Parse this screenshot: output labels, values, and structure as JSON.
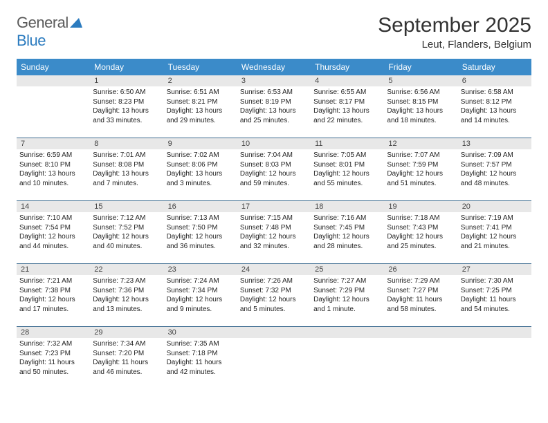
{
  "logo": {
    "part1": "General",
    "part2": "Blue"
  },
  "title": "September 2025",
  "location": "Leut, Flanders, Belgium",
  "colors": {
    "header_bg": "#3b8bc9",
    "header_text": "#ffffff",
    "daynum_bg": "#e8e8e8",
    "border": "#3b6a8f",
    "logo_gray": "#5a5a5a",
    "logo_blue": "#2b7bbf"
  },
  "typography": {
    "title_fontsize": 30,
    "location_fontsize": 15,
    "dayheader_fontsize": 12,
    "daynum_fontsize": 11,
    "cell_fontsize": 10
  },
  "day_names": [
    "Sunday",
    "Monday",
    "Tuesday",
    "Wednesday",
    "Thursday",
    "Friday",
    "Saturday"
  ],
  "weeks": [
    {
      "nums": [
        "",
        "1",
        "2",
        "3",
        "4",
        "5",
        "6"
      ],
      "cells": [
        [],
        [
          "Sunrise: 6:50 AM",
          "Sunset: 8:23 PM",
          "Daylight: 13 hours",
          "and 33 minutes."
        ],
        [
          "Sunrise: 6:51 AM",
          "Sunset: 8:21 PM",
          "Daylight: 13 hours",
          "and 29 minutes."
        ],
        [
          "Sunrise: 6:53 AM",
          "Sunset: 8:19 PM",
          "Daylight: 13 hours",
          "and 25 minutes."
        ],
        [
          "Sunrise: 6:55 AM",
          "Sunset: 8:17 PM",
          "Daylight: 13 hours",
          "and 22 minutes."
        ],
        [
          "Sunrise: 6:56 AM",
          "Sunset: 8:15 PM",
          "Daylight: 13 hours",
          "and 18 minutes."
        ],
        [
          "Sunrise: 6:58 AM",
          "Sunset: 8:12 PM",
          "Daylight: 13 hours",
          "and 14 minutes."
        ]
      ]
    },
    {
      "nums": [
        "7",
        "8",
        "9",
        "10",
        "11",
        "12",
        "13"
      ],
      "cells": [
        [
          "Sunrise: 6:59 AM",
          "Sunset: 8:10 PM",
          "Daylight: 13 hours",
          "and 10 minutes."
        ],
        [
          "Sunrise: 7:01 AM",
          "Sunset: 8:08 PM",
          "Daylight: 13 hours",
          "and 7 minutes."
        ],
        [
          "Sunrise: 7:02 AM",
          "Sunset: 8:06 PM",
          "Daylight: 13 hours",
          "and 3 minutes."
        ],
        [
          "Sunrise: 7:04 AM",
          "Sunset: 8:03 PM",
          "Daylight: 12 hours",
          "and 59 minutes."
        ],
        [
          "Sunrise: 7:05 AM",
          "Sunset: 8:01 PM",
          "Daylight: 12 hours",
          "and 55 minutes."
        ],
        [
          "Sunrise: 7:07 AM",
          "Sunset: 7:59 PM",
          "Daylight: 12 hours",
          "and 51 minutes."
        ],
        [
          "Sunrise: 7:09 AM",
          "Sunset: 7:57 PM",
          "Daylight: 12 hours",
          "and 48 minutes."
        ]
      ]
    },
    {
      "nums": [
        "14",
        "15",
        "16",
        "17",
        "18",
        "19",
        "20"
      ],
      "cells": [
        [
          "Sunrise: 7:10 AM",
          "Sunset: 7:54 PM",
          "Daylight: 12 hours",
          "and 44 minutes."
        ],
        [
          "Sunrise: 7:12 AM",
          "Sunset: 7:52 PM",
          "Daylight: 12 hours",
          "and 40 minutes."
        ],
        [
          "Sunrise: 7:13 AM",
          "Sunset: 7:50 PM",
          "Daylight: 12 hours",
          "and 36 minutes."
        ],
        [
          "Sunrise: 7:15 AM",
          "Sunset: 7:48 PM",
          "Daylight: 12 hours",
          "and 32 minutes."
        ],
        [
          "Sunrise: 7:16 AM",
          "Sunset: 7:45 PM",
          "Daylight: 12 hours",
          "and 28 minutes."
        ],
        [
          "Sunrise: 7:18 AM",
          "Sunset: 7:43 PM",
          "Daylight: 12 hours",
          "and 25 minutes."
        ],
        [
          "Sunrise: 7:19 AM",
          "Sunset: 7:41 PM",
          "Daylight: 12 hours",
          "and 21 minutes."
        ]
      ]
    },
    {
      "nums": [
        "21",
        "22",
        "23",
        "24",
        "25",
        "26",
        "27"
      ],
      "cells": [
        [
          "Sunrise: 7:21 AM",
          "Sunset: 7:38 PM",
          "Daylight: 12 hours",
          "and 17 minutes."
        ],
        [
          "Sunrise: 7:23 AM",
          "Sunset: 7:36 PM",
          "Daylight: 12 hours",
          "and 13 minutes."
        ],
        [
          "Sunrise: 7:24 AM",
          "Sunset: 7:34 PM",
          "Daylight: 12 hours",
          "and 9 minutes."
        ],
        [
          "Sunrise: 7:26 AM",
          "Sunset: 7:32 PM",
          "Daylight: 12 hours",
          "and 5 minutes."
        ],
        [
          "Sunrise: 7:27 AM",
          "Sunset: 7:29 PM",
          "Daylight: 12 hours",
          "and 1 minute."
        ],
        [
          "Sunrise: 7:29 AM",
          "Sunset: 7:27 PM",
          "Daylight: 11 hours",
          "and 58 minutes."
        ],
        [
          "Sunrise: 7:30 AM",
          "Sunset: 7:25 PM",
          "Daylight: 11 hours",
          "and 54 minutes."
        ]
      ]
    },
    {
      "nums": [
        "28",
        "29",
        "30",
        "",
        "",
        "",
        ""
      ],
      "cells": [
        [
          "Sunrise: 7:32 AM",
          "Sunset: 7:23 PM",
          "Daylight: 11 hours",
          "and 50 minutes."
        ],
        [
          "Sunrise: 7:34 AM",
          "Sunset: 7:20 PM",
          "Daylight: 11 hours",
          "and 46 minutes."
        ],
        [
          "Sunrise: 7:35 AM",
          "Sunset: 7:18 PM",
          "Daylight: 11 hours",
          "and 42 minutes."
        ],
        [],
        [],
        [],
        []
      ]
    }
  ]
}
